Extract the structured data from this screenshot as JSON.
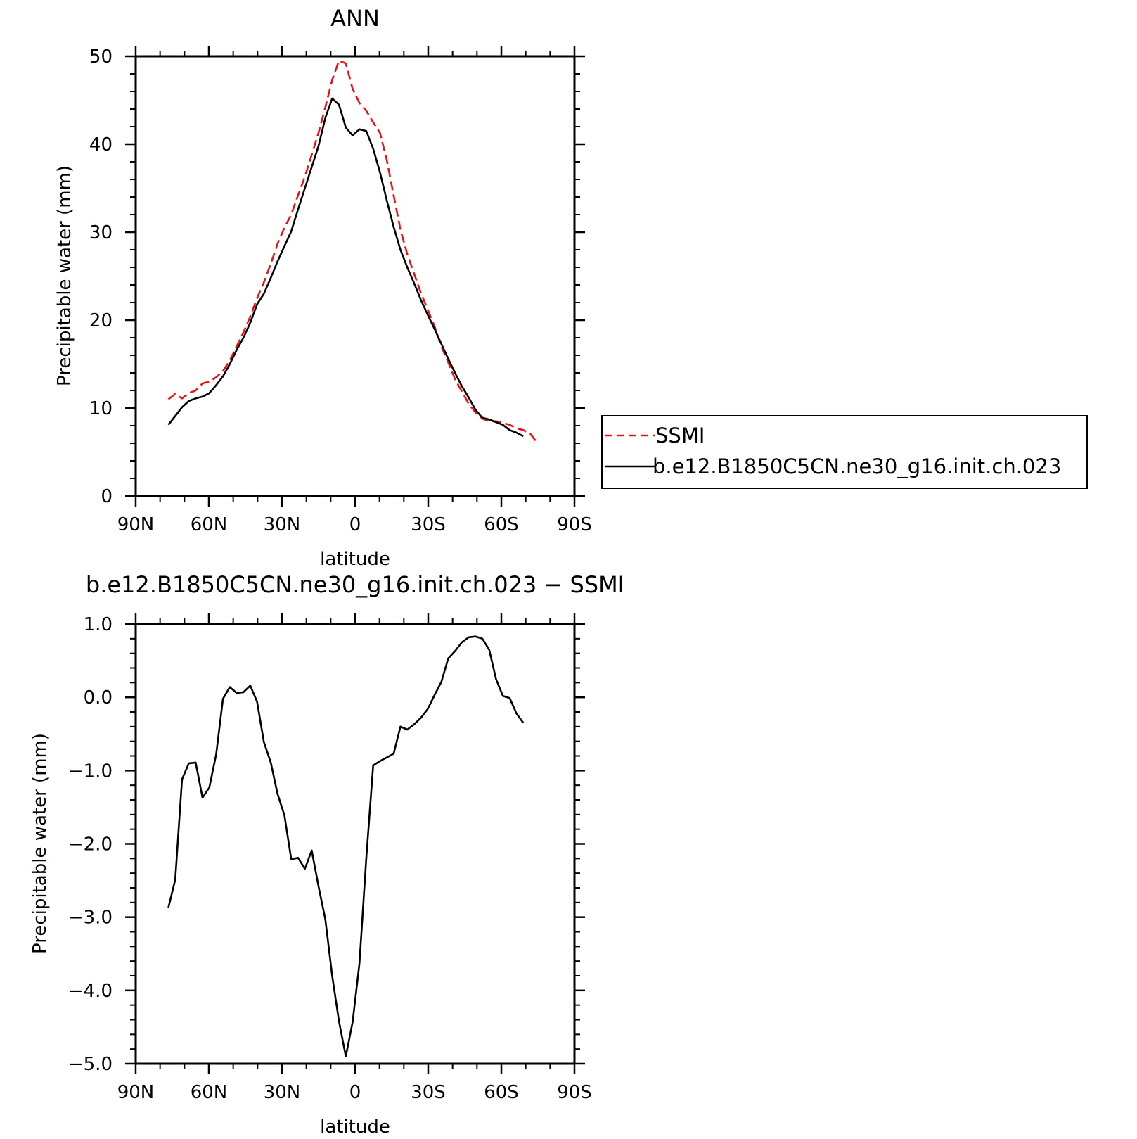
{
  "chart_data": [
    {
      "type": "line",
      "title": "ANN",
      "xlabel": "latitude",
      "ylabel": "Precipitable water (mm)",
      "xlim": [
        90,
        -90
      ],
      "ylim": [
        0,
        50
      ],
      "x_ticks": [
        {
          "value": 90,
          "label": "90N"
        },
        {
          "value": 60,
          "label": "60N"
        },
        {
          "value": 30,
          "label": "30N"
        },
        {
          "value": 0,
          "label": "0"
        },
        {
          "value": -30,
          "label": "30S"
        },
        {
          "value": -60,
          "label": "60S"
        },
        {
          "value": -90,
          "label": "90S"
        }
      ],
      "y_ticks": [
        {
          "value": 0,
          "label": "0"
        },
        {
          "value": 10,
          "label": "10"
        },
        {
          "value": 20,
          "label": "20"
        },
        {
          "value": 30,
          "label": "30"
        },
        {
          "value": 40,
          "label": "40"
        },
        {
          "value": 50,
          "label": "50"
        }
      ],
      "legend": "outside right",
      "series": [
        {
          "name": "SSMI",
          "color": "#e8121a",
          "dash": "dashed",
          "x": [
            76.6,
            73.8,
            71.0,
            68.2,
            65.4,
            62.6,
            59.8,
            57.0,
            54.2,
            51.4,
            48.6,
            45.8,
            43.0,
            40.2,
            37.4,
            34.6,
            31.8,
            29.0,
            26.2,
            23.4,
            20.6,
            17.8,
            15.0,
            12.2,
            9.4,
            6.6,
            3.8,
            1.0,
            -1.8,
            -4.6,
            -7.4,
            -10.2,
            -13.0,
            -15.8,
            -18.6,
            -21.4,
            -24.2,
            -27.0,
            -29.8,
            -32.6,
            -35.4,
            -38.2,
            -41.0,
            -43.8,
            -46.6,
            -49.4,
            -52.2,
            -55.0,
            -57.8,
            -60.6,
            -63.4,
            -66.2,
            -69.0,
            -71.8,
            -74.6
          ],
          "y": [
            11.0,
            11.6,
            11.1,
            11.7,
            12.0,
            12.8,
            13.0,
            13.5,
            14.2,
            15.4,
            17.0,
            18.6,
            20.4,
            22.5,
            24.3,
            26.4,
            28.7,
            30.5,
            32.0,
            34.2,
            36.3,
            38.8,
            41.3,
            44.2,
            47.3,
            49.5,
            49.2,
            46.3,
            44.7,
            43.8,
            42.5,
            41.3,
            38.2,
            34.2,
            30.3,
            27.5,
            25.3,
            23.1,
            21.2,
            19.3,
            17.0,
            15.2,
            13.3,
            11.9,
            10.5,
            9.5,
            8.8,
            8.5,
            8.5,
            8.3,
            8.1,
            7.7,
            7.5,
            7.1,
            6.1
          ]
        },
        {
          "name": "b.e12.B1850C5CN.ne30_g16.init.ch.023",
          "color": "#000000",
          "dash": "solid",
          "x": [
            76.6,
            73.8,
            71.0,
            68.2,
            65.4,
            62.6,
            59.8,
            57.0,
            54.2,
            51.4,
            48.6,
            45.8,
            43.0,
            40.2,
            37.4,
            34.6,
            31.8,
            29.0,
            26.2,
            23.4,
            20.6,
            17.8,
            15.0,
            12.2,
            9.4,
            6.6,
            3.8,
            1.0,
            -1.8,
            -4.6,
            -7.4,
            -10.2,
            -13.0,
            -15.8,
            -18.6,
            -21.4,
            -24.2,
            -27.0,
            -29.8,
            -32.6,
            -35.4,
            -38.2,
            -41.0,
            -43.8,
            -46.6,
            -49.4,
            -52.2,
            -55.0,
            -57.8,
            -60.6,
            -63.4,
            -66.2,
            -69.0
          ],
          "y": [
            8.1,
            9.1,
            10.1,
            10.8,
            11.1,
            11.3,
            11.7,
            12.6,
            13.6,
            15.0,
            16.6,
            18.0,
            19.7,
            21.8,
            23.0,
            24.8,
            26.7,
            28.4,
            30.1,
            32.6,
            35.0,
            37.4,
            39.8,
            43.0,
            45.2,
            44.5,
            41.9,
            41.0,
            41.7,
            41.5,
            39.5,
            36.8,
            33.6,
            30.6,
            28.0,
            26.0,
            24.2,
            22.3,
            20.6,
            19.0,
            17.3,
            15.6,
            14.0,
            12.5,
            11.2,
            9.8,
            8.9,
            8.7,
            8.4,
            8.1,
            7.5,
            7.2,
            6.8
          ]
        }
      ]
    },
    {
      "type": "line",
      "title": "b.e12.B1850C5CN.ne30_g16.init.ch.023 − SSMI",
      "xlabel": "latitude",
      "ylabel": "Precipitable water (mm)",
      "xlim": [
        90,
        -90
      ],
      "ylim": [
        -5,
        1
      ],
      "x_ticks": [
        {
          "value": 90,
          "label": "90N"
        },
        {
          "value": 60,
          "label": "60N"
        },
        {
          "value": 30,
          "label": "30N"
        },
        {
          "value": 0,
          "label": "0"
        },
        {
          "value": -30,
          "label": "30S"
        },
        {
          "value": -60,
          "label": "60S"
        },
        {
          "value": -90,
          "label": "90S"
        }
      ],
      "y_ticks": [
        {
          "value": 1,
          "label": "1.0"
        },
        {
          "value": 0,
          "label": "0.0"
        },
        {
          "value": -1,
          "label": "−1.0"
        },
        {
          "value": -2,
          "label": "−2.0"
        },
        {
          "value": -3,
          "label": "−3.0"
        },
        {
          "value": -4,
          "label": "−4.0"
        },
        {
          "value": -5,
          "label": "−5.0"
        }
      ],
      "series": [
        {
          "color": "#000000",
          "dash": "solid",
          "x": [
            76.6,
            73.8,
            71.0,
            68.2,
            65.4,
            62.6,
            59.8,
            57.0,
            54.2,
            51.4,
            48.6,
            45.8,
            43.0,
            40.2,
            37.4,
            34.6,
            31.8,
            29.0,
            26.2,
            23.4,
            20.6,
            17.8,
            15.0,
            12.2,
            9.4,
            6.6,
            3.8,
            1.0,
            -1.8,
            -4.6,
            -7.4,
            -10.2,
            -13.0,
            -15.8,
            -18.6,
            -21.4,
            -24.2,
            -27.0,
            -29.8,
            -32.6,
            -35.4,
            -38.2,
            -41.0,
            -43.8,
            -46.6,
            -49.4,
            -52.2,
            -55.0,
            -57.8,
            -60.6,
            -63.4,
            -66.2,
            -69.0
          ],
          "y": [
            -2.87,
            -2.49,
            -1.12,
            -0.9,
            -0.89,
            -1.37,
            -1.23,
            -0.78,
            -0.02,
            0.14,
            0.06,
            0.07,
            0.16,
            -0.06,
            -0.61,
            -0.89,
            -1.32,
            -1.61,
            -2.21,
            -2.19,
            -2.34,
            -2.09,
            -2.58,
            -3.03,
            -3.8,
            -4.42,
            -4.9,
            -4.43,
            -3.63,
            -2.2,
            -0.93,
            -0.87,
            -0.82,
            -0.77,
            -0.4,
            -0.44,
            -0.37,
            -0.28,
            -0.16,
            0.03,
            0.21,
            0.53,
            0.63,
            0.75,
            0.82,
            0.83,
            0.8,
            0.65,
            0.25,
            0.02,
            -0.01,
            -0.22,
            -0.35
          ]
        }
      ]
    }
  ]
}
